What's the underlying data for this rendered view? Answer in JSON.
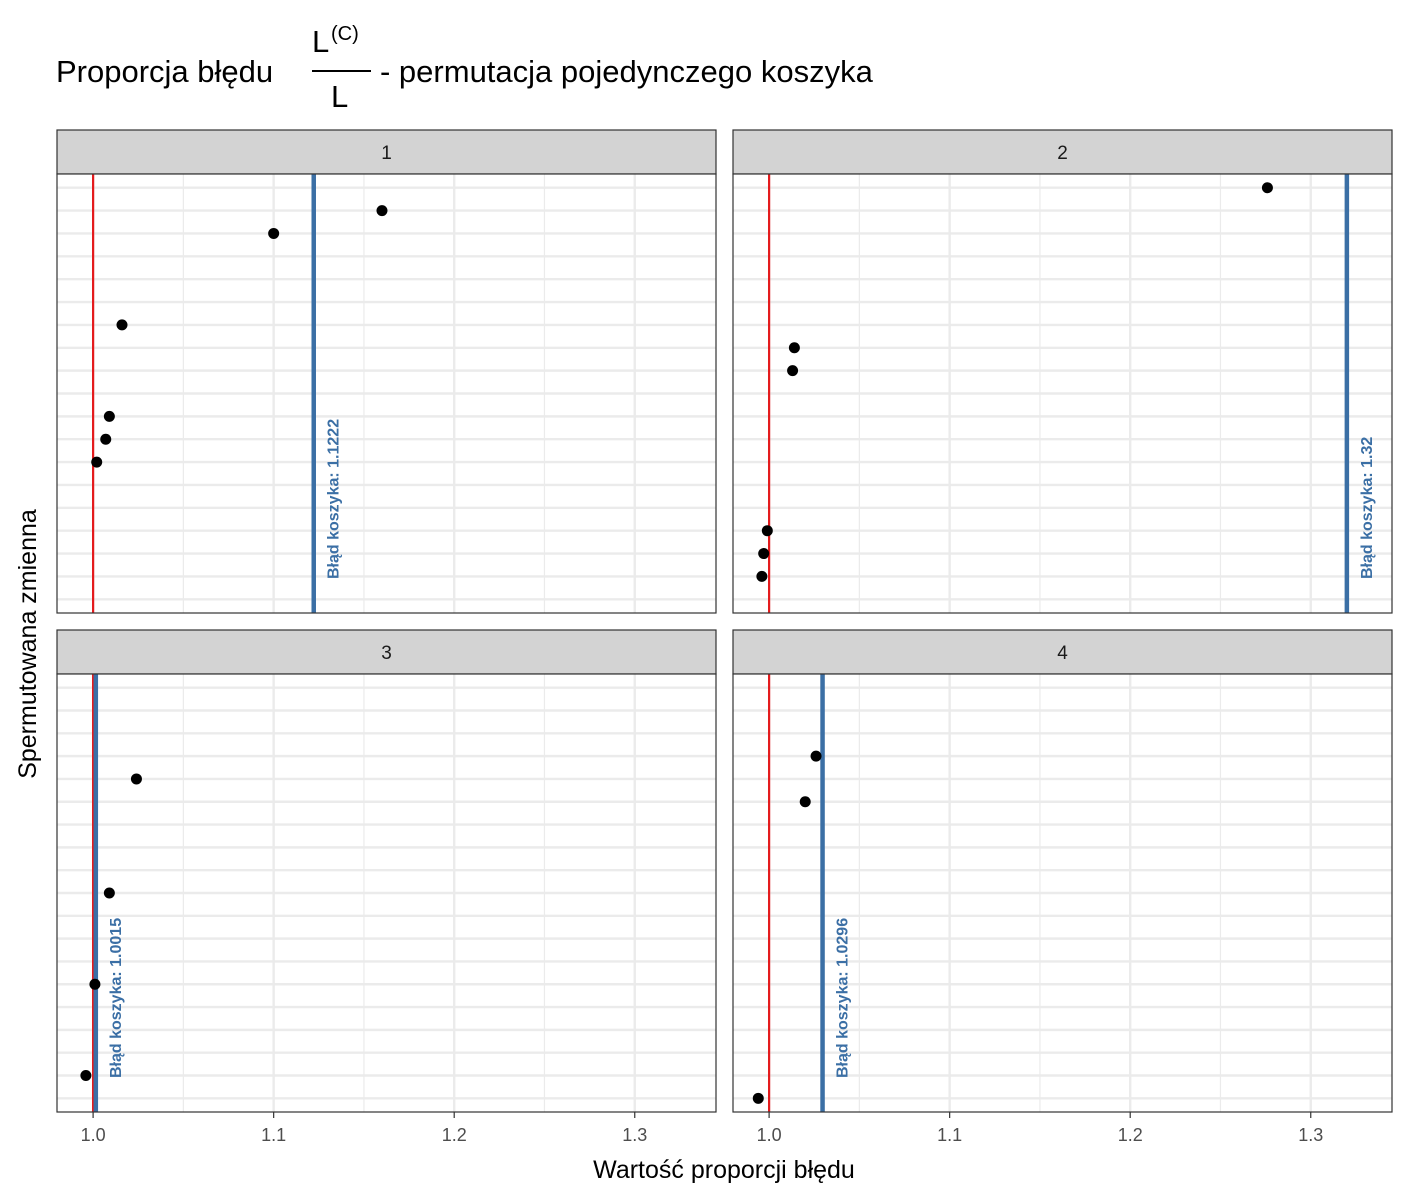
{
  "title": {
    "prefix": "Proporcja błędu",
    "numerator": "L",
    "numerator_sup": "(C)",
    "denominator": "L",
    "suffix": "- permutacja pojedynczego koszyka"
  },
  "xlabel": "Wartość proporcji błędu",
  "ylabel": "Spermutowana zmienna",
  "colors": {
    "reference_line": "#e41a1c",
    "basket_line": "#3b6fa5",
    "point": "#000000",
    "strip_fill": "#d3d3d3",
    "grid": "#ebebeb"
  },
  "chart_data": {
    "type": "scatter",
    "facet_layout": "2x2",
    "xlim": [
      0.98,
      1.345
    ],
    "x_ticks": [
      "1.0",
      "1.1",
      "1.2",
      "1.3"
    ],
    "y_ticks_shown": false,
    "reference_x": 1.0,
    "panels": [
      {
        "label": "1",
        "basket_error": 1.1222,
        "basket_label": "Błąd koszyka: 1.1222",
        "n_rows": 19,
        "points": [
          {
            "row": 18,
            "x": 1.16
          },
          {
            "row": 17,
            "x": 1.1
          },
          {
            "row": 13,
            "x": 1.016
          },
          {
            "row": 9,
            "x": 1.009
          },
          {
            "row": 8,
            "x": 1.007
          },
          {
            "row": 7,
            "x": 1.002
          }
        ]
      },
      {
        "label": "2",
        "basket_error": 1.32,
        "basket_label": "Błąd koszyka: 1.32",
        "n_rows": 19,
        "points": [
          {
            "row": 19,
            "x": 1.276
          },
          {
            "row": 12,
            "x": 1.014
          },
          {
            "row": 11,
            "x": 1.013
          },
          {
            "row": 4,
            "x": 0.999
          },
          {
            "row": 3,
            "x": 0.997
          },
          {
            "row": 2,
            "x": 0.996
          }
        ]
      },
      {
        "label": "3",
        "basket_error": 1.0015,
        "basket_label": "Błąd koszyka: 1.0015",
        "n_rows": 19,
        "points": [
          {
            "row": 15,
            "x": 1.024
          },
          {
            "row": 10,
            "x": 1.009
          },
          {
            "row": 6,
            "x": 1.001
          },
          {
            "row": 2,
            "x": 0.996
          }
        ]
      },
      {
        "label": "4",
        "basket_error": 1.0296,
        "basket_label": "Błąd koszyka: 1.0296",
        "n_rows": 19,
        "points": [
          {
            "row": 16,
            "x": 1.026
          },
          {
            "row": 14,
            "x": 1.02
          },
          {
            "row": 1,
            "x": 0.994
          }
        ]
      }
    ]
  }
}
